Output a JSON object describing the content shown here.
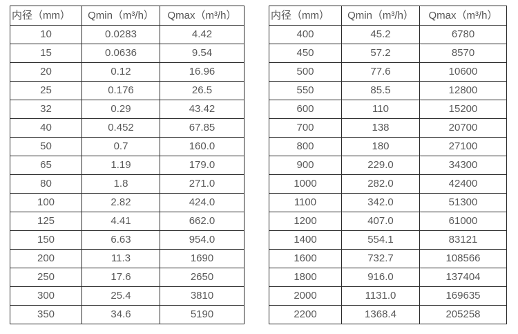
{
  "colors": {
    "border": "#2b2b2b",
    "text": "#595959",
    "background": "#ffffff"
  },
  "tables": [
    {
      "name": "diameter-flow-table-small",
      "headers": [
        "内径（mm）",
        "Qmin（m³/h）",
        "Qmax（m³/h）"
      ],
      "rows": [
        [
          "10",
          "0.0283",
          "4.42"
        ],
        [
          "15",
          "0.0636",
          "9.54"
        ],
        [
          "20",
          "0.12",
          "16.96"
        ],
        [
          "25",
          "0.176",
          "26.5"
        ],
        [
          "32",
          "0.29",
          "43.42"
        ],
        [
          "40",
          "0.452",
          "67.85"
        ],
        [
          "50",
          "0.7",
          "160.0"
        ],
        [
          "65",
          "1.19",
          "179.0"
        ],
        [
          "80",
          "1.8",
          "271.0"
        ],
        [
          "100",
          "2.82",
          "424.0"
        ],
        [
          "125",
          "4.41",
          "662.0"
        ],
        [
          "150",
          "6.63",
          "954.0"
        ],
        [
          "200",
          "11.3",
          "1690"
        ],
        [
          "250",
          "17.6",
          "2650"
        ],
        [
          "300",
          "25.4",
          "3810"
        ],
        [
          "350",
          "34.6",
          "5190"
        ]
      ]
    },
    {
      "name": "diameter-flow-table-large",
      "headers": [
        "内径（mm）",
        "Qmin（m³/h）",
        "Qmax（m³/h）"
      ],
      "rows": [
        [
          "400",
          "45.2",
          "6780"
        ],
        [
          "450",
          "57.2",
          "8570"
        ],
        [
          "500",
          "77.6",
          "10600"
        ],
        [
          "550",
          "85.5",
          "12800"
        ],
        [
          "600",
          "110",
          "15200"
        ],
        [
          "700",
          "138",
          "20700"
        ],
        [
          "800",
          "180",
          "27100"
        ],
        [
          "900",
          "229.0",
          "34300"
        ],
        [
          "1000",
          "282.0",
          "42400"
        ],
        [
          "1100",
          "342.0",
          "51300"
        ],
        [
          "1200",
          "407.0",
          "61000"
        ],
        [
          "1400",
          "554.1",
          "83121"
        ],
        [
          "1600",
          "732.7",
          "108566"
        ],
        [
          "1800",
          "916.0",
          "137404"
        ],
        [
          "2000",
          "1131.0",
          "169635"
        ],
        [
          "2200",
          "1368.4",
          "205258"
        ]
      ]
    }
  ]
}
